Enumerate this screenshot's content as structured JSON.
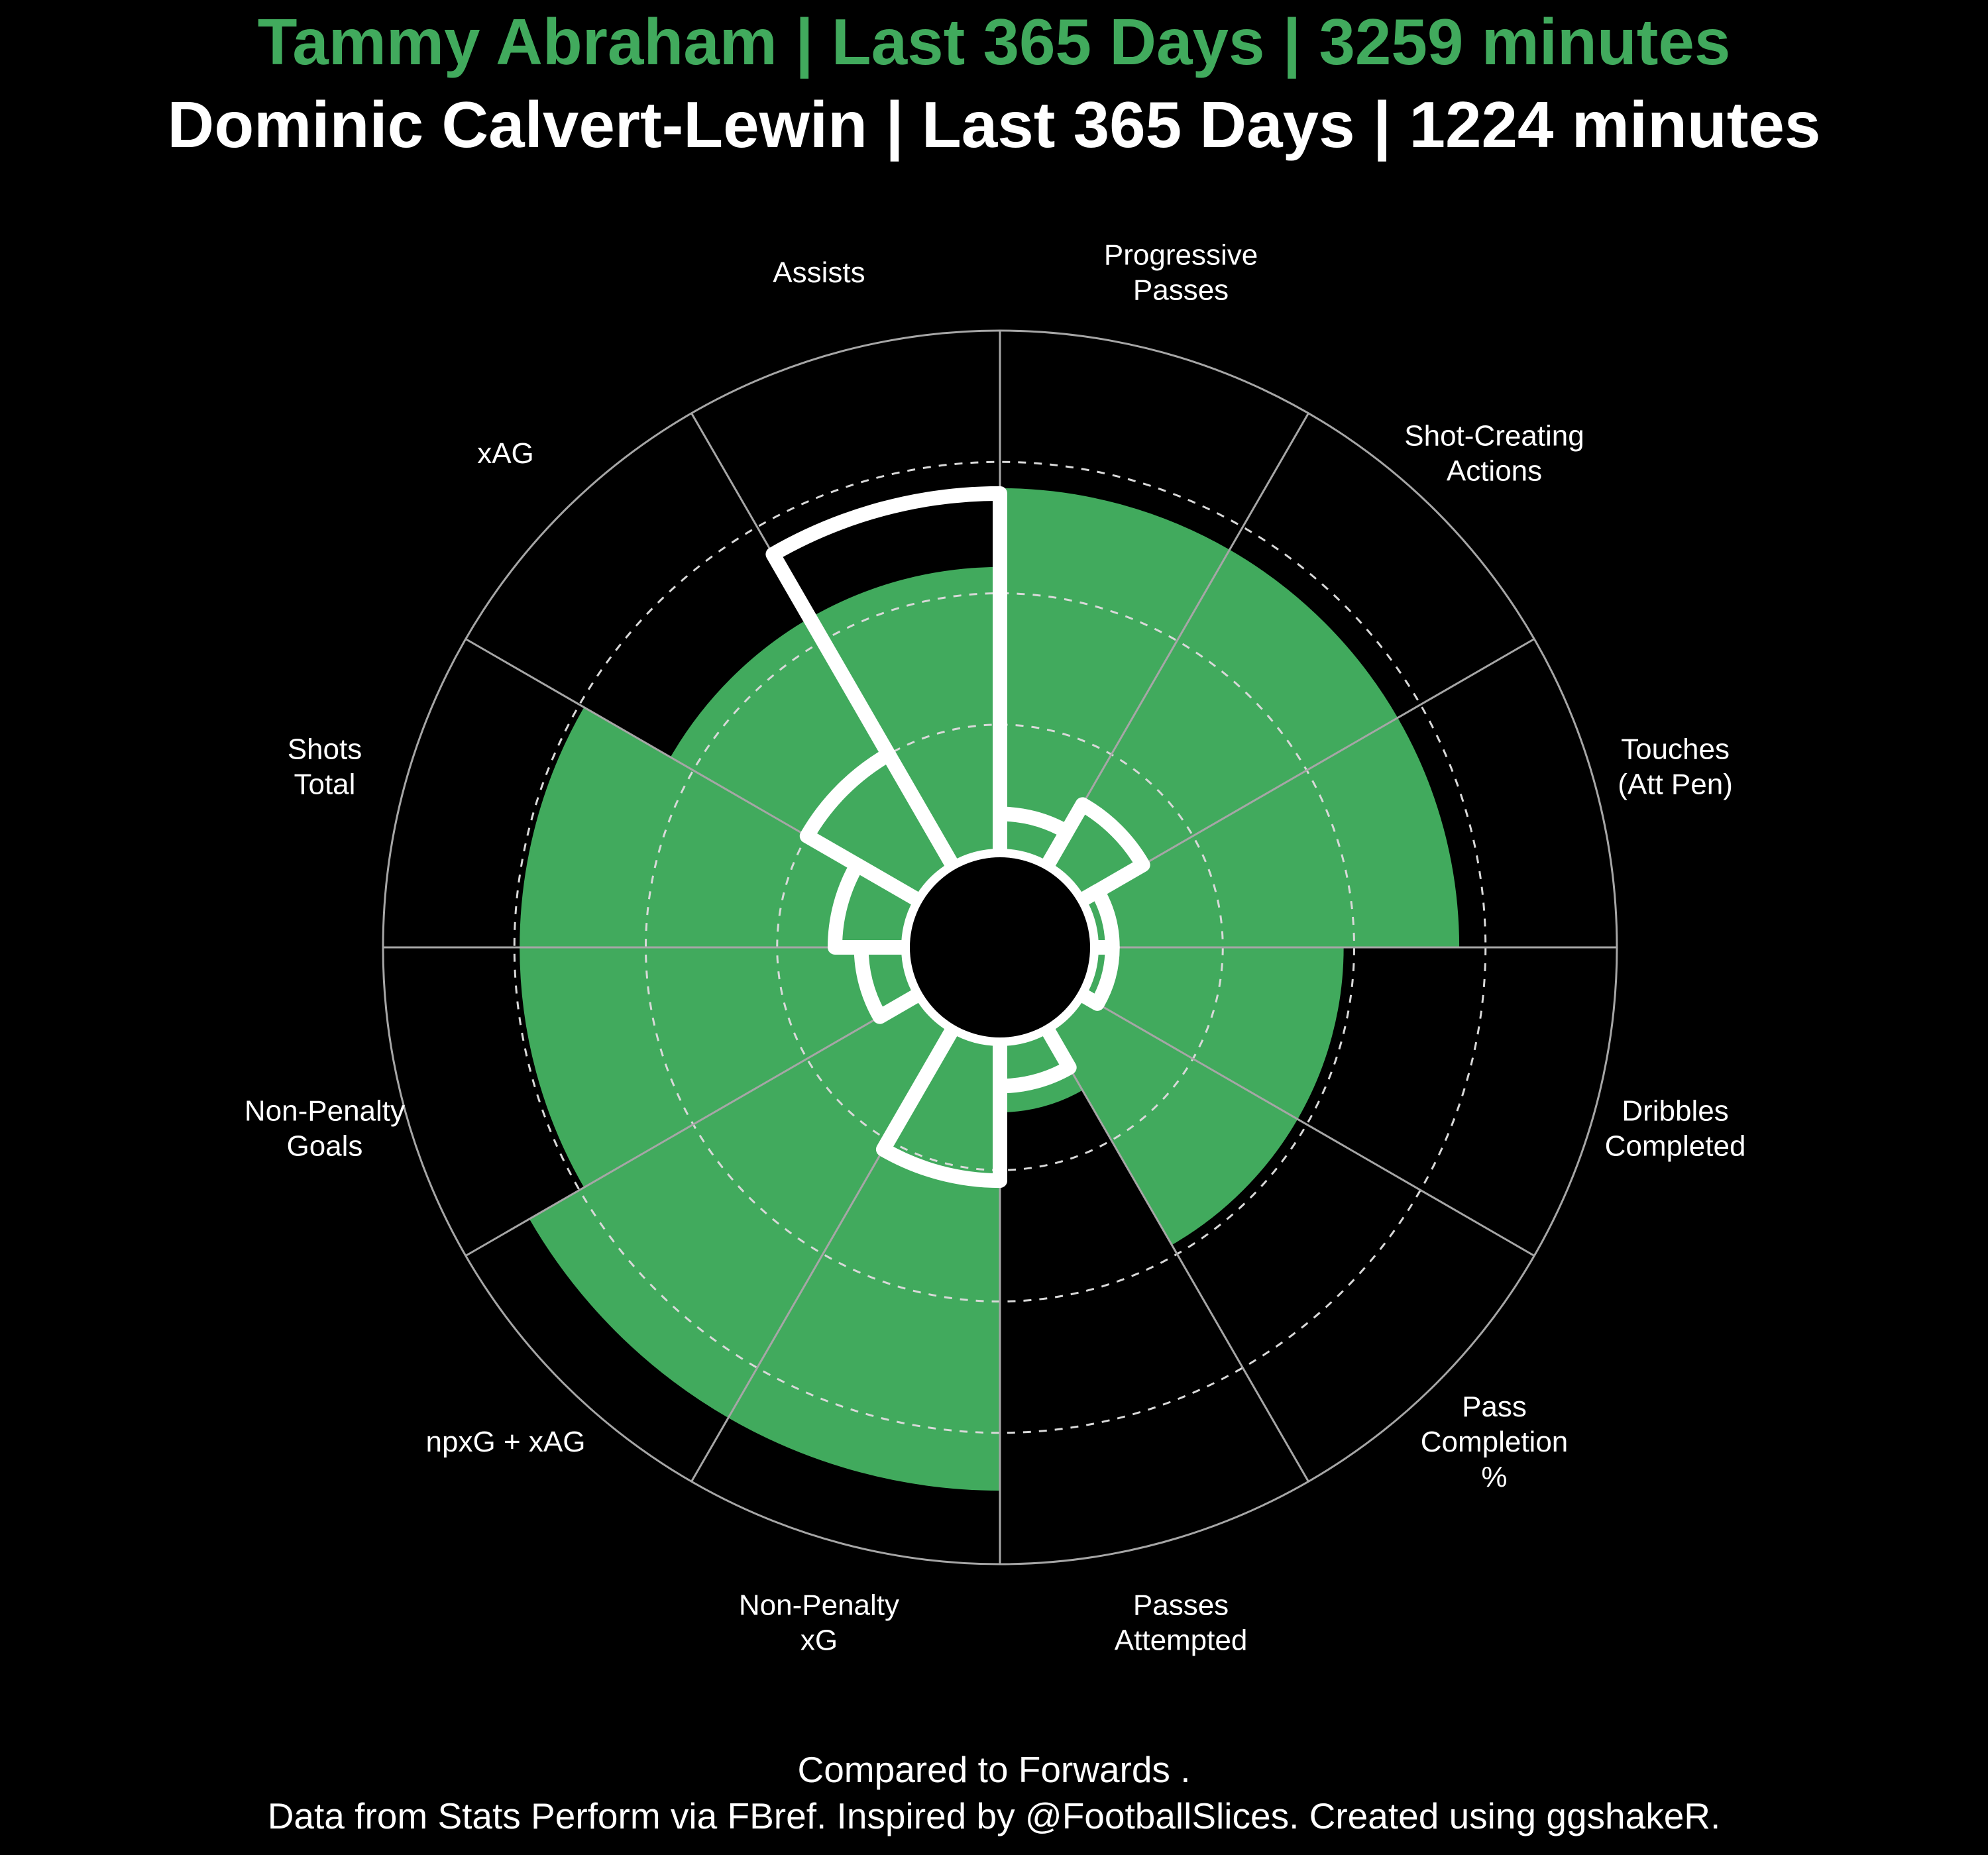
{
  "chart_data": {
    "type": "radial-bar",
    "title": "Tammy Abraham | Last 365 Days | 3259 minutes",
    "subtitle": "Dominic Calvert-Lewin | Last 365 Days | 1224 minutes",
    "categories": [
      "Progressive\nPasses",
      "Shot-Creating\nActions",
      "Touches\n(Att Pen)",
      "Dribbles\nCompleted",
      "Pass\nCompletion\n%",
      "Passes\nAttempted",
      "Non-Penalty\nxG",
      "npxG + xAG",
      "Non-Penalty\nGoals",
      "Shots\nTotal",
      "xAG",
      "Assists"
    ],
    "series": [
      {
        "name": "Tammy Abraham",
        "values": [
          70,
          70,
          70,
          48,
          48,
          14,
          86,
          86,
          74,
          74,
          55,
          55
        ]
      },
      {
        "name": "Dominic Calvert-Lewin",
        "values": [
          8,
          14,
          4,
          4,
          0,
          9,
          27,
          0,
          9,
          14,
          25,
          69
        ]
      }
    ],
    "rlim": [
      0,
      100
    ],
    "grid_rings": [
      25,
      50,
      75
    ],
    "caption": "Compared to Forwards .",
    "source_note": "Data from Stats Perform via FBref. Inspired by @FootballSlices. Created using ggshakeR.",
    "colors": {
      "background": "#000000",
      "series1": "#41aa5d",
      "series2": "#ffffff",
      "grid": "#a6a6a6",
      "title": "#41aa5d",
      "subtitle": "#ffffff"
    }
  }
}
